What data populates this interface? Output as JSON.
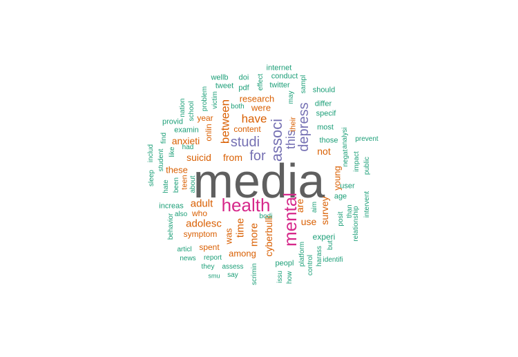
{
  "colors": {
    "gray": "#5f5f5f",
    "magenta": "#d6288a",
    "purple": "#7570b3",
    "orange": "#d95f02",
    "green": "#1b9e77"
  },
  "words": [
    {
      "text": "media",
      "color": "gray"
    },
    {
      "text": "health",
      "color": "magenta"
    },
    {
      "text": "mental",
      "color": "magenta"
    },
    {
      "text": "associ",
      "color": "purple"
    },
    {
      "text": "depress",
      "color": "purple"
    },
    {
      "text": "studi",
      "color": "purple"
    },
    {
      "text": "this",
      "color": "purple"
    },
    {
      "text": "for",
      "color": "purple"
    },
    {
      "text": "between",
      "color": "orange"
    },
    {
      "text": "have",
      "color": "orange"
    },
    {
      "text": "research",
      "color": "orange"
    },
    {
      "text": "were",
      "color": "orange"
    },
    {
      "text": "year",
      "color": "orange"
    },
    {
      "text": "onlin",
      "color": "orange"
    },
    {
      "text": "content",
      "color": "orange"
    },
    {
      "text": "anxieti",
      "color": "orange"
    },
    {
      "text": "suicid",
      "color": "orange"
    },
    {
      "text": "from",
      "color": "orange"
    },
    {
      "text": "not",
      "color": "orange"
    },
    {
      "text": "their",
      "color": "orange"
    },
    {
      "text": "these",
      "color": "orange"
    },
    {
      "text": "teen",
      "color": "orange"
    },
    {
      "text": "adult",
      "color": "orange"
    },
    {
      "text": "adolesc",
      "color": "orange"
    },
    {
      "text": "symptom",
      "color": "orange"
    },
    {
      "text": "time",
      "color": "orange"
    },
    {
      "text": "more",
      "color": "orange"
    },
    {
      "text": "was",
      "color": "orange"
    },
    {
      "text": "among",
      "color": "orange"
    },
    {
      "text": "spent",
      "color": "orange"
    },
    {
      "text": "cyberbulli",
      "color": "orange"
    },
    {
      "text": "are",
      "color": "orange"
    },
    {
      "text": "use",
      "color": "orange"
    },
    {
      "text": "survey",
      "color": "orange"
    },
    {
      "text": "young",
      "color": "orange"
    },
    {
      "text": "who",
      "color": "orange"
    },
    {
      "text": "internet",
      "color": "green"
    },
    {
      "text": "wellb",
      "color": "green"
    },
    {
      "text": "doi",
      "color": "green"
    },
    {
      "text": "effect",
      "color": "green"
    },
    {
      "text": "conduct",
      "color": "green"
    },
    {
      "text": "twitter",
      "color": "green"
    },
    {
      "text": "tweet",
      "color": "green"
    },
    {
      "text": "pdf",
      "color": "green"
    },
    {
      "text": "victim",
      "color": "green"
    },
    {
      "text": "problem",
      "color": "green"
    },
    {
      "text": "both",
      "color": "green"
    },
    {
      "text": "nation",
      "color": "green"
    },
    {
      "text": "school",
      "color": "green"
    },
    {
      "text": "sampl",
      "color": "green"
    },
    {
      "text": "may",
      "color": "green"
    },
    {
      "text": "should",
      "color": "green"
    },
    {
      "text": "differ",
      "color": "green"
    },
    {
      "text": "specif",
      "color": "green"
    },
    {
      "text": "most",
      "color": "green"
    },
    {
      "text": "provid",
      "color": "green"
    },
    {
      "text": "examin",
      "color": "green"
    },
    {
      "text": "find",
      "color": "green"
    },
    {
      "text": "includ",
      "color": "green"
    },
    {
      "text": "student",
      "color": "green"
    },
    {
      "text": "like",
      "color": "green"
    },
    {
      "text": "had",
      "color": "green"
    },
    {
      "text": "analysi",
      "color": "green"
    },
    {
      "text": "prevent",
      "color": "green"
    },
    {
      "text": "those",
      "color": "green"
    },
    {
      "text": "negat",
      "color": "green"
    },
    {
      "text": "impact",
      "color": "green"
    },
    {
      "text": "public",
      "color": "green"
    },
    {
      "text": "sleep",
      "color": "green"
    },
    {
      "text": "hate",
      "color": "green"
    },
    {
      "text": "been",
      "color": "green"
    },
    {
      "text": "about",
      "color": "green"
    },
    {
      "text": "user",
      "color": "green"
    },
    {
      "text": "age",
      "color": "green"
    },
    {
      "text": "aim",
      "color": "green"
    },
    {
      "text": "increas",
      "color": "green"
    },
    {
      "text": "also",
      "color": "green"
    },
    {
      "text": "behavior",
      "color": "green"
    },
    {
      "text": "bodi",
      "color": "green"
    },
    {
      "text": "posit",
      "color": "green"
    },
    {
      "text": "than",
      "color": "green"
    },
    {
      "text": "relationship",
      "color": "green"
    },
    {
      "text": "intervent",
      "color": "green"
    },
    {
      "text": "experi",
      "color": "green"
    },
    {
      "text": "platform",
      "color": "green"
    },
    {
      "text": "control",
      "color": "green"
    },
    {
      "text": "harass",
      "color": "green"
    },
    {
      "text": "identifi",
      "color": "green"
    },
    {
      "text": "but",
      "color": "green"
    },
    {
      "text": "articl",
      "color": "green"
    },
    {
      "text": "news",
      "color": "green"
    },
    {
      "text": "report",
      "color": "green"
    },
    {
      "text": "they",
      "color": "green"
    },
    {
      "text": "assess",
      "color": "green"
    },
    {
      "text": "scrimin",
      "color": "green"
    },
    {
      "text": "peopl",
      "color": "green"
    },
    {
      "text": "issu",
      "color": "green"
    },
    {
      "text": "how",
      "color": "green"
    },
    {
      "text": "smu",
      "color": "green"
    },
    {
      "text": "say",
      "color": "green"
    }
  ]
}
